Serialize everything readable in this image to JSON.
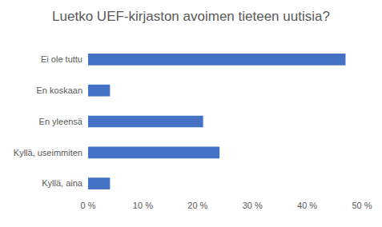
{
  "chart_data": {
    "type": "bar",
    "orientation": "horizontal",
    "title": "Luetko UEF-kirjaston avoimen tieteen uutisia?",
    "categories": [
      "Ei ole tuttu",
      "En koskaan",
      "En yleensä",
      "Kyllä, useimmiten",
      "Kyllä, aina"
    ],
    "values": [
      47,
      4,
      21,
      24,
      4
    ],
    "color": "#4472c4",
    "xlim": [
      0,
      50
    ],
    "xticks": [
      {
        "value": 0,
        "label": "0 %"
      },
      {
        "value": 10,
        "label": "10 %"
      },
      {
        "value": 20,
        "label": "20 %"
      },
      {
        "value": 30,
        "label": "30 %"
      },
      {
        "value": 40,
        "label": "40 %"
      },
      {
        "value": 50,
        "label": "50 %"
      }
    ],
    "grid": false
  }
}
